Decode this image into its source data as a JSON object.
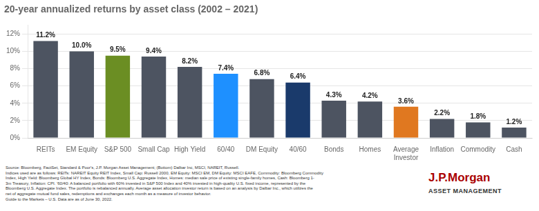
{
  "chart_data": {
    "type": "bar",
    "title": "20-year annualized returns by asset class (2002 – 2021)",
    "categories": [
      "REITs",
      "EM Equity",
      "S&P 500",
      "Small Cap",
      "High Yield",
      "60/40",
      "DM Equity",
      "40/60",
      "Bonds",
      "Homes",
      "Average\nInvestor",
      "Inflation",
      "Commodity",
      "Cash"
    ],
    "values": [
      11.2,
      10.0,
      9.5,
      9.4,
      8.2,
      7.4,
      6.8,
      6.4,
      4.3,
      4.2,
      3.6,
      2.2,
      1.8,
      1.2
    ],
    "value_labels": [
      "11.2%",
      "10.0%",
      "9.5%",
      "9.4%",
      "8.2%",
      "7.4%",
      "6.8%",
      "6.4%",
      "4.3%",
      "4.2%",
      "3.6%",
      "2.2%",
      "1.8%",
      "1.2%"
    ],
    "colors": [
      "#4d5461",
      "#4d5461",
      "#6b8e23",
      "#4d5461",
      "#4d5461",
      "#1e90ff",
      "#4d5461",
      "#1a3a6b",
      "#4d5461",
      "#4d5461",
      "#e07820",
      "#4d5461",
      "#4d5461",
      "#4d5461"
    ],
    "ylim": [
      0,
      13
    ],
    "yticks": [
      {
        "value": 0,
        "label": "0%"
      },
      {
        "value": 2,
        "label": "2%"
      },
      {
        "value": 4,
        "label": "4%"
      },
      {
        "value": 6,
        "label": "6%"
      },
      {
        "value": 8,
        "label": "8%"
      },
      {
        "value": 10,
        "label": "10%"
      },
      {
        "value": 12,
        "label": "12%"
      }
    ],
    "grid": true,
    "data_labels": true,
    "annotations": [
      "Source: Bloomberg, FactSet, Standard & Poor's, J.P. Morgan Asset Management; (Bottom) Dalbar Inc, MSCI, NAREIT, Russell.\nIndices used are as follows: REITs: NAREIT Equity REIT Index, Small Cap: Russell 2000, EM Equity: MSCI EM, DM Equity: MSCI EAFE, Commodity: Bloomberg Commodity\nIndex, High Yield: Bloomberg Global HY Index, Bonds: Bloomberg U.S. Aggregate Index, Homes: median sale price of existing single-family homes, Cash: Bloomberg 1-\n3m Treasury, Inflation: CPI. ’60/40: A balanced portfolio with 60% invested in S&P 500 Index and 40% invested in high-quality U.S. fixed income, represented by the\nBloomberg U.S. Aggregate Index. The portfolio is rebalanced annually. Average asset allocation investor return is based on an analysis by Dalbar Inc., which utilizes the\nnet of aggregate mutual fund sales, redemptions and exchanges each month as a measure of investor behavior.\nGuide to the Markets – U.S. Data are as of June 30, 2022.",
      "J.P.Morgan",
      "ASSET MANAGEMENT"
    ]
  }
}
